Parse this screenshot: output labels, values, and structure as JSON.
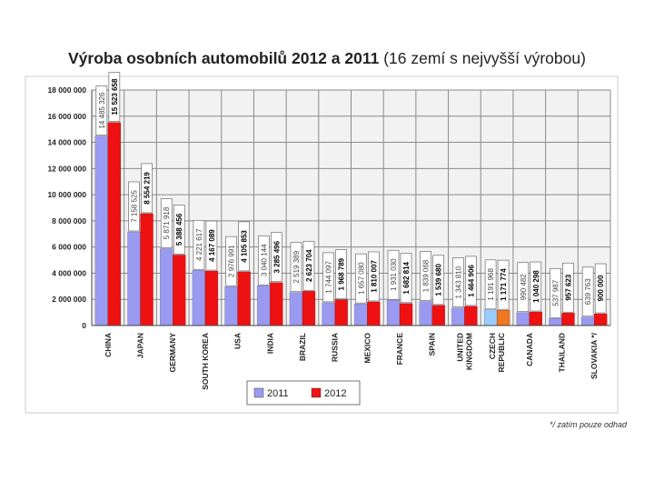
{
  "title": {
    "bold": "Výroba osobních automobilů 2012 a 2011",
    "normal": "(16 zemí s nejvyšší výrobou)"
  },
  "footnote": "*/ zatím pouze odhad",
  "colors": {
    "s2011": "#9a9af0",
    "s2012": "#ee1111",
    "czech2011": "#99ccff",
    "czech2012": "#f07820",
    "plot_bg": "#f2f2f2",
    "grid": "#8a8a8a"
  },
  "chart_data": {
    "type": "bar",
    "title": "Výroba osobních automobilů 2012 a 2011 (16 zemí s nejvyšší výrobou)",
    "xlabel": "",
    "ylabel": "",
    "ylim": [
      0,
      18000000
    ],
    "grid": true,
    "legend_position": "bottom",
    "yticks": [
      {
        "value": 0,
        "label": "0"
      },
      {
        "value": 2000000,
        "label": "2 000 000"
      },
      {
        "value": 4000000,
        "label": "4 000 000"
      },
      {
        "value": 6000000,
        "label": "6 000 000"
      },
      {
        "value": 8000000,
        "label": "8 000 000"
      },
      {
        "value": 10000000,
        "label": "10 000 000"
      },
      {
        "value": 12000000,
        "label": "12 000 000"
      },
      {
        "value": 14000000,
        "label": "14 000 000"
      },
      {
        "value": 16000000,
        "label": "16 000 000"
      },
      {
        "value": 18000000,
        "label": "18 000 000"
      }
    ],
    "categories": [
      [
        "CHINA"
      ],
      [
        "JAPAN"
      ],
      [
        "GERMANY"
      ],
      [
        "SOUTH KOREA"
      ],
      [
        "USA"
      ],
      [
        "INDIA"
      ],
      [
        "BRAZIL"
      ],
      [
        "RUSSIA"
      ],
      [
        "MEXICO"
      ],
      [
        "FRANCE"
      ],
      [
        "SPAIN"
      ],
      [
        "UNITED",
        "KINGDOM"
      ],
      [
        "CZECH",
        "REPUBLIC"
      ],
      [
        "CANADA"
      ],
      [
        "THAILAND"
      ],
      [
        "SLOVAKIA */"
      ]
    ],
    "series": [
      {
        "name": "2011",
        "values": [
          14485326,
          7158525,
          5871918,
          4221617,
          2976991,
          3040144,
          2519389,
          1744097,
          1657080,
          1931030,
          1839068,
          1343810,
          1191968,
          990482,
          537987,
          639763
        ],
        "labels": [
          "14 485 326",
          "7 158 525",
          "5 871 918",
          "4 221 617",
          "2 976 991",
          "3 040 144",
          "2 519 389",
          "1 744 097",
          "1 657 080",
          "1 931 030",
          "1 839 068",
          "1 343 810",
          "1 191 968",
          "990 482",
          "537 987",
          "639 763"
        ]
      },
      {
        "name": "2012",
        "values": [
          15523658,
          8554219,
          5388456,
          4167089,
          4105853,
          3285496,
          2623704,
          1968789,
          1810007,
          1682814,
          1539680,
          1464906,
          1171774,
          1040298,
          957623,
          900000
        ],
        "labels": [
          "15 523 658",
          "8 554 219",
          "5 388 456",
          "4 167 089",
          "4 105 853",
          "3 285 496",
          "2 623 704",
          "1 968 789",
          "1 810 007",
          "1 682 814",
          "1 539 680",
          "1 464 906",
          "1 171 774",
          "1 040 298",
          "957 623",
          "900 000"
        ]
      }
    ],
    "highlight_category": "CZECH REPUBLIC"
  }
}
